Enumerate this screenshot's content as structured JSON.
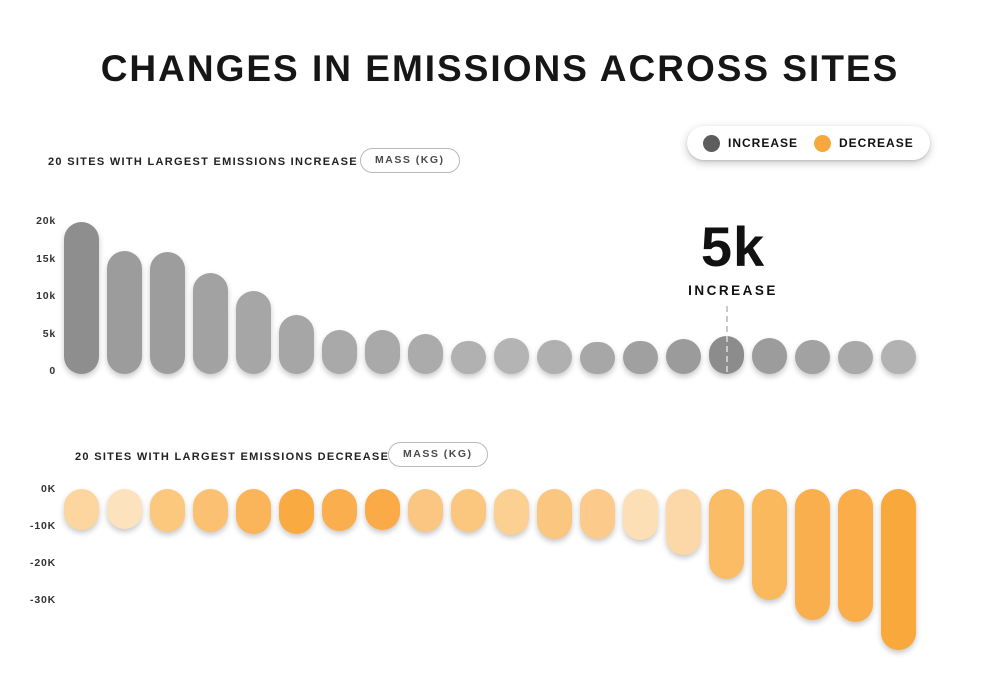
{
  "title": "CHANGES IN EMISSIONS ACROSS SITES",
  "legend": {
    "items": [
      {
        "label": "INCREASE",
        "color": "#5d5d5d"
      },
      {
        "label": "DECREASE",
        "color": "#f6a83e"
      }
    ]
  },
  "chart_data": [
    {
      "type": "bar",
      "title": "20 SITES WITH LARGEST EMISSIONS INCREASE",
      "unit_badge": "MASS (KG)",
      "orientation": "vertical",
      "grid": false,
      "x_tick_labels": [],
      "ylim": [
        0,
        21000
      ],
      "yticks": [
        {
          "value": 20000,
          "label": "20k"
        },
        {
          "value": 15000,
          "label": "15k"
        },
        {
          "value": 10000,
          "label": "10k"
        },
        {
          "value": 5000,
          "label": "5k"
        },
        {
          "value": 0,
          "label": "0"
        }
      ],
      "values": [
        20300,
        16400,
        16200,
        13400,
        11000,
        7900,
        5900,
        5800,
        5300,
        4400,
        4800,
        4500,
        4300,
        4400,
        4600,
        5000,
        4800,
        4500,
        4400,
        4500
      ],
      "bar_colors": [
        "#8e8e8e",
        "#9c9c9c",
        "#9d9d9d",
        "#a2a2a2",
        "#a6a6a6",
        "#a6a6a6",
        "#a9a9a9",
        "#a9a9a9",
        "#ababab",
        "#b1b1b1",
        "#b4b4b4",
        "#b0b0b0",
        "#a7a7a7",
        "#a0a0a0",
        "#9b9b9b",
        "#8c8c8c",
        "#9c9c9c",
        "#a2a2a2",
        "#a9a9a9",
        "#b2b2b2"
      ],
      "annotation": {
        "text": "5k",
        "label": "INCREASE",
        "bar_index": 15
      }
    },
    {
      "type": "bar",
      "title": "20 SITES WITH LARGEST EMISSIONS DECREASE",
      "unit_badge": "MASS (KG)",
      "orientation": "vertical",
      "grid": false,
      "x_tick_labels": [],
      "ylim": [
        -44000,
        0
      ],
      "yticks": [
        {
          "value": 0,
          "label": "0K"
        },
        {
          "value": -10000,
          "label": "-10K"
        },
        {
          "value": -20000,
          "label": "-20K"
        },
        {
          "value": -30000,
          "label": "-30K"
        }
      ],
      "values": [
        -11100,
        -10800,
        -11600,
        -11600,
        -12200,
        -12200,
        -11300,
        -11100,
        -11600,
        -11600,
        -12400,
        -13500,
        -13500,
        -13800,
        -17800,
        -24300,
        -30000,
        -35500,
        -36000,
        -43500
      ],
      "bar_colors": [
        "#fcd69e",
        "#fde3bd",
        "#fbc87e",
        "#fbc071",
        "#fab45a",
        "#f9ab42",
        "#faae4e",
        "#faaa47",
        "#fbc681",
        "#fbc67e",
        "#fccf93",
        "#fbc67f",
        "#fccb8b",
        "#fddfb5",
        "#fcd8a8",
        "#fbbc66",
        "#fbb95e",
        "#faaf4e",
        "#faad49",
        "#f9a83c"
      ]
    }
  ]
}
